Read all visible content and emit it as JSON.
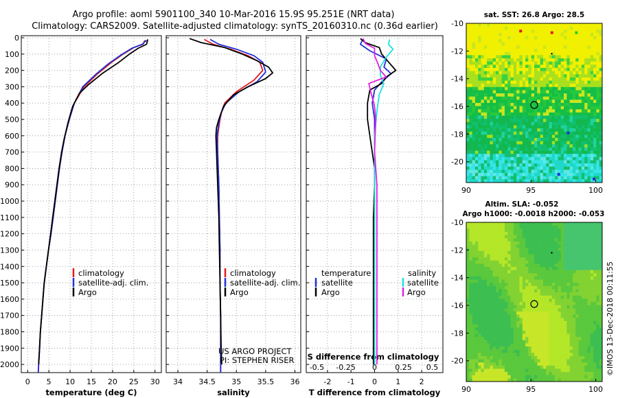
{
  "header": {
    "line1": "Argo profile: aoml 5901100_340 10-Mar-2016 15.9S 95.251E (NRT data)",
    "line2": "Climatology: CARS2009. Satellite-adjusted climatology: synTS_20160310.nc (0.36d earlier)"
  },
  "colors": {
    "climatology": "#e41a1c",
    "satellite": "#1f2fd6",
    "argo": "#000000",
    "salinity_sat": "#19e0e0",
    "salinity_argo": "#e020e0"
  },
  "chart_data": [
    {
      "type": "line",
      "panel": "temperature",
      "xlabel": "temperature (deg C)",
      "xlim": [
        -1.5,
        31.5
      ],
      "xticks": [
        0,
        5,
        10,
        15,
        20,
        25,
        30
      ],
      "ylim": [
        2050,
        0
      ],
      "yticks": [
        0,
        100,
        200,
        300,
        400,
        500,
        600,
        700,
        800,
        900,
        1000,
        1100,
        1200,
        1300,
        1400,
        1500,
        1600,
        1700,
        1800,
        1900,
        2000
      ],
      "legend": [
        "climatology",
        "satellite-adj. clim.",
        "Argo"
      ],
      "series": [
        {
          "name": "climatology",
          "color": "climatology",
          "points": [
            [
              27.6,
              15
            ],
            [
              27.2,
              40
            ],
            [
              25.0,
              60
            ],
            [
              22.5,
              100
            ],
            [
              19.8,
              150
            ],
            [
              16.5,
              220
            ],
            [
              13.3,
              300
            ],
            [
              11.0,
              400
            ],
            [
              9.8,
              500
            ],
            [
              8.8,
              600
            ],
            [
              8.1,
              700
            ],
            [
              7.5,
              800
            ],
            [
              7.0,
              900
            ],
            [
              6.5,
              1000
            ],
            [
              6.0,
              1100
            ],
            [
              5.5,
              1200
            ],
            [
              4.9,
              1300
            ],
            [
              4.4,
              1400
            ],
            [
              3.9,
              1500
            ],
            [
              3.6,
              1600
            ],
            [
              3.3,
              1700
            ],
            [
              3.0,
              1800
            ],
            [
              2.8,
              1900
            ],
            [
              2.6,
              2000
            ],
            [
              2.5,
              2050
            ]
          ]
        },
        {
          "name": "satellite-adj. clim.",
          "color": "satellite",
          "points": [
            [
              28.0,
              15
            ],
            [
              27.0,
              40
            ],
            [
              24.5,
              65
            ],
            [
              22.0,
              105
            ],
            [
              19.0,
              160
            ],
            [
              16.0,
              225
            ],
            [
              13.0,
              300
            ],
            [
              11.0,
              400
            ],
            [
              9.8,
              500
            ],
            [
              8.8,
              600
            ],
            [
              8.1,
              700
            ],
            [
              7.5,
              800
            ],
            [
              7.0,
              900
            ],
            [
              6.5,
              1000
            ],
            [
              6.0,
              1100
            ],
            [
              5.5,
              1200
            ],
            [
              4.9,
              1300
            ],
            [
              4.4,
              1400
            ],
            [
              3.9,
              1500
            ],
            [
              3.6,
              1600
            ],
            [
              3.3,
              1700
            ],
            [
              3.0,
              1800
            ],
            [
              2.8,
              1900
            ],
            [
              2.6,
              2000
            ],
            [
              2.5,
              2050
            ]
          ]
        },
        {
          "name": "Argo",
          "color": "argo",
          "points": [
            [
              28.3,
              10
            ],
            [
              28.0,
              40
            ],
            [
              26.0,
              65
            ],
            [
              24.0,
              100
            ],
            [
              21.5,
              150
            ],
            [
              17.5,
              220
            ],
            [
              14.2,
              290
            ],
            [
              12.2,
              340
            ],
            [
              10.6,
              420
            ],
            [
              9.5,
              520
            ],
            [
              8.6,
              620
            ],
            [
              8.0,
              700
            ],
            [
              7.4,
              800
            ],
            [
              6.9,
              900
            ],
            [
              6.4,
              1000
            ],
            [
              5.9,
              1100
            ],
            [
              5.4,
              1200
            ],
            [
              4.9,
              1300
            ],
            [
              4.4,
              1400
            ],
            [
              3.9,
              1500
            ],
            [
              3.6,
              1600
            ],
            [
              3.3,
              1700
            ],
            [
              3.0,
              1800
            ],
            [
              2.8,
              1900
            ],
            [
              2.6,
              2000
            ]
          ]
        }
      ]
    },
    {
      "type": "line",
      "panel": "salinity",
      "xlabel": "salinity",
      "xlim": [
        33.8,
        36.1
      ],
      "xticks": [
        34,
        34.5,
        35,
        35.5,
        36
      ],
      "ylim": [
        2050,
        0
      ],
      "legend": [
        "climatology",
        "satellite-adj. clim.",
        "Argo"
      ],
      "series": [
        {
          "name": "climatology",
          "color": "climatology",
          "points": [
            [
              34.45,
              10
            ],
            [
              34.6,
              40
            ],
            [
              34.9,
              70
            ],
            [
              35.2,
              110
            ],
            [
              35.4,
              150
            ],
            [
              35.45,
              200
            ],
            [
              35.3,
              260
            ],
            [
              35.0,
              330
            ],
            [
              34.8,
              400
            ],
            [
              34.75,
              450
            ],
            [
              34.72,
              500
            ],
            [
              34.68,
              600
            ],
            [
              34.68,
              700
            ],
            [
              34.7,
              900
            ],
            [
              34.71,
              1100
            ],
            [
              34.72,
              1300
            ],
            [
              34.72,
              1500
            ],
            [
              34.73,
              1700
            ],
            [
              34.73,
              2000
            ],
            [
              34.73,
              2050
            ]
          ]
        },
        {
          "name": "satellite-adj. clim.",
          "color": "satellite",
          "points": [
            [
              34.55,
              10
            ],
            [
              34.7,
              40
            ],
            [
              35.0,
              70
            ],
            [
              35.3,
              110
            ],
            [
              35.45,
              150
            ],
            [
              35.5,
              210
            ],
            [
              35.35,
              270
            ],
            [
              35.05,
              330
            ],
            [
              34.82,
              400
            ],
            [
              34.74,
              460
            ],
            [
              34.7,
              520
            ],
            [
              34.67,
              600
            ],
            [
              34.68,
              700
            ],
            [
              34.7,
              900
            ],
            [
              34.71,
              1100
            ],
            [
              34.72,
              1300
            ],
            [
              34.72,
              1500
            ],
            [
              34.73,
              1700
            ],
            [
              34.73,
              2000
            ],
            [
              34.73,
              2050
            ]
          ]
        },
        {
          "name": "Argo",
          "color": "argo",
          "points": [
            [
              34.2,
              5
            ],
            [
              34.4,
              30
            ],
            [
              34.8,
              60
            ],
            [
              35.1,
              100
            ],
            [
              35.35,
              140
            ],
            [
              35.55,
              180
            ],
            [
              35.62,
              215
            ],
            [
              35.5,
              250
            ],
            [
              35.2,
              300
            ],
            [
              34.95,
              350
            ],
            [
              34.78,
              420
            ],
            [
              34.7,
              500
            ],
            [
              34.66,
              550
            ],
            [
              34.65,
              600
            ],
            [
              34.66,
              700
            ],
            [
              34.68,
              900
            ],
            [
              34.7,
              1100
            ],
            [
              34.71,
              1300
            ],
            [
              34.72,
              1500
            ],
            [
              34.73,
              1700
            ],
            [
              34.74,
              1900
            ],
            [
              34.75,
              2000
            ]
          ]
        }
      ]
    },
    {
      "type": "line",
      "panel": "difference",
      "xlabel": "T difference from climatology",
      "xlabel_top": "S difference from climatology",
      "xlim": [
        -2.9,
        2.9
      ],
      "xticks": [
        -2,
        -1,
        0,
        1,
        2
      ],
      "xticks_top": [
        -0.5,
        -0.25,
        0,
        0.25,
        0.5
      ],
      "xtick_top_labels": [
        "-0.5",
        "-0.25",
        "0",
        "0.25",
        "0.5"
      ],
      "ylim": [
        2050,
        0
      ],
      "legend_temperature": {
        "title": "temperature",
        "items": [
          "satellite",
          "Argo"
        ]
      },
      "legend_salinity": {
        "title": "salinity",
        "items": [
          "satellite",
          "Argo"
        ]
      },
      "series": [
        {
          "name": "temperature satellite",
          "color": "satellite",
          "points": [
            [
              -0.5,
              10
            ],
            [
              -0.6,
              40
            ],
            [
              -0.2,
              80
            ],
            [
              0.5,
              130
            ],
            [
              0.4,
              180
            ],
            [
              0.7,
              220
            ],
            [
              0.3,
              270
            ],
            [
              0.0,
              320
            ],
            [
              -0.1,
              400
            ],
            [
              0.0,
              500
            ],
            [
              0.0,
              600
            ],
            [
              0.0,
              800
            ],
            [
              0.0,
              1000
            ],
            [
              0.0,
              1500
            ],
            [
              0.0,
              2000
            ]
          ]
        },
        {
          "name": "temperature Argo",
          "color": "argo",
          "points": [
            [
              -0.6,
              5
            ],
            [
              -0.4,
              30
            ],
            [
              0.2,
              60
            ],
            [
              0.3,
              100
            ],
            [
              0.6,
              150
            ],
            [
              0.9,
              200
            ],
            [
              0.5,
              240
            ],
            [
              0.3,
              280
            ],
            [
              -0.2,
              320
            ],
            [
              -0.3,
              400
            ],
            [
              -0.3,
              500
            ],
            [
              -0.2,
              600
            ],
            [
              -0.1,
              700
            ],
            [
              0.0,
              800
            ],
            [
              0.0,
              900
            ],
            [
              -0.05,
              1100
            ],
            [
              -0.05,
              1300
            ],
            [
              -0.05,
              1500
            ],
            [
              -0.05,
              1700
            ],
            [
              -0.05,
              1900
            ],
            [
              -0.05,
              2000
            ]
          ]
        },
        {
          "name": "salinity satellite",
          "color": "salinity_sat",
          "points": [
            [
              0.13,
              10
            ],
            [
              0.12,
              40
            ],
            [
              0.16,
              70
            ],
            [
              0.1,
              120
            ],
            [
              0.05,
              180
            ],
            [
              0.05,
              230
            ],
            [
              0.08,
              280
            ],
            [
              0.04,
              350
            ],
            [
              0.02,
              450
            ],
            [
              0.0,
              600
            ],
            [
              0.0,
              1000
            ],
            [
              0.0,
              1500
            ],
            [
              0.0,
              2000
            ]
          ]
        },
        {
          "name": "salinity Argo",
          "color": "salinity_argo",
          "points": [
            [
              -0.1,
              5
            ],
            [
              -0.08,
              35
            ],
            [
              0.0,
              65
            ],
            [
              0.0,
              110
            ],
            [
              0.03,
              160
            ],
            [
              0.05,
              200
            ],
            [
              0.1,
              240
            ],
            [
              -0.05,
              280
            ],
            [
              -0.03,
              340
            ],
            [
              0.0,
              420
            ],
            [
              0.01,
              500
            ],
            [
              0.0,
              700
            ],
            [
              0.02,
              900
            ],
            [
              0.02,
              1100
            ],
            [
              0.02,
              1300
            ],
            [
              0.02,
              1500
            ],
            [
              0.02,
              1700
            ],
            [
              0.02,
              1900
            ],
            [
              0.02,
              2000
            ]
          ]
        }
      ]
    },
    {
      "type": "heatmap",
      "panel": "sst_map",
      "title": "sat. SST: 26.8 Argo: 28.5",
      "xlim": [
        90,
        100.5
      ],
      "ylim": [
        -21.5,
        -10
      ],
      "xticks": [
        90,
        95,
        100
      ],
      "yticks": [
        -10,
        -12,
        -14,
        -16,
        -18,
        -20
      ],
      "argo_position": [
        95.25,
        -15.9
      ],
      "previous_position": [
        96.6,
        -12.2
      ]
    },
    {
      "type": "heatmap",
      "panel": "sla_map",
      "title": "Altim. SLA: -0.052",
      "subtitle": "Argo h1000: -0.0018 h2000: -0.053",
      "xlim": [
        90,
        100.5
      ],
      "ylim": [
        -21.5,
        -10
      ],
      "xticks": [
        90,
        95,
        100
      ],
      "yticks": [
        -10,
        -12,
        -14,
        -16,
        -18,
        -20
      ],
      "argo_position": [
        95.25,
        -15.9
      ],
      "previous_position": [
        96.6,
        -12.2
      ]
    }
  ],
  "legend_labels": {
    "climatology": "climatology",
    "satellite_adj": "satellite-adj. clim.",
    "argo": "Argo",
    "temperature": "temperature",
    "salinity": "salinity",
    "satellite": "satellite"
  },
  "credits": {
    "project": "US ARGO PROJECT",
    "pi": "PI: STEPHEN RISER",
    "imos": "©IMOS 13-Dec-2018 00:11:55"
  }
}
